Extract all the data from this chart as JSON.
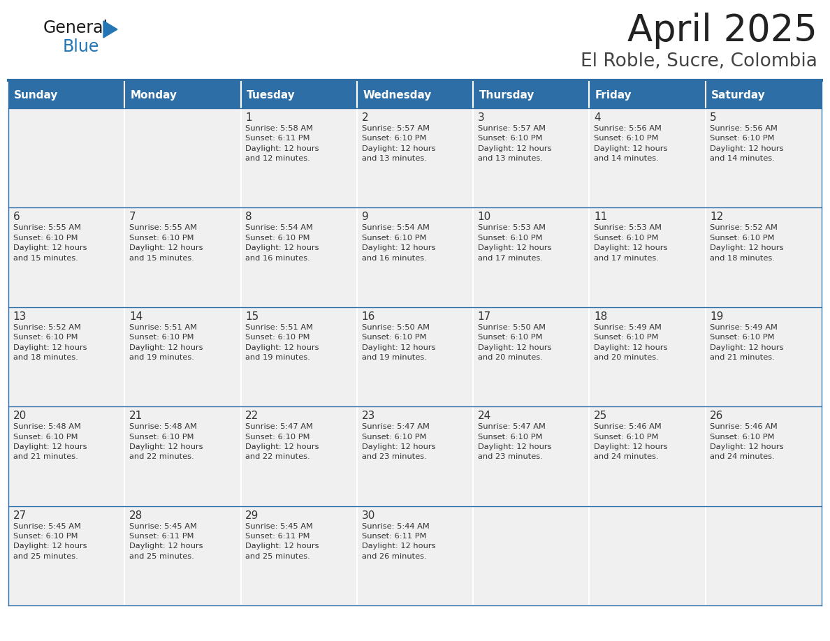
{
  "title": "April 2025",
  "subtitle": "El Roble, Sucre, Colombia",
  "header_bg": "#2E6EA6",
  "header_text_color": "#FFFFFF",
  "cell_bg": "#F0F0F0",
  "border_color": "#2E6EA6",
  "text_color": "#333333",
  "days_of_week": [
    "Sunday",
    "Monday",
    "Tuesday",
    "Wednesday",
    "Thursday",
    "Friday",
    "Saturday"
  ],
  "logo_color1": "#1a1a1a",
  "logo_color2": "#2375B3",
  "calendar": [
    [
      {
        "day": "",
        "info": ""
      },
      {
        "day": "",
        "info": ""
      },
      {
        "day": "1",
        "info": "Sunrise: 5:58 AM\nSunset: 6:11 PM\nDaylight: 12 hours\nand 12 minutes."
      },
      {
        "day": "2",
        "info": "Sunrise: 5:57 AM\nSunset: 6:10 PM\nDaylight: 12 hours\nand 13 minutes."
      },
      {
        "day": "3",
        "info": "Sunrise: 5:57 AM\nSunset: 6:10 PM\nDaylight: 12 hours\nand 13 minutes."
      },
      {
        "day": "4",
        "info": "Sunrise: 5:56 AM\nSunset: 6:10 PM\nDaylight: 12 hours\nand 14 minutes."
      },
      {
        "day": "5",
        "info": "Sunrise: 5:56 AM\nSunset: 6:10 PM\nDaylight: 12 hours\nand 14 minutes."
      }
    ],
    [
      {
        "day": "6",
        "info": "Sunrise: 5:55 AM\nSunset: 6:10 PM\nDaylight: 12 hours\nand 15 minutes."
      },
      {
        "day": "7",
        "info": "Sunrise: 5:55 AM\nSunset: 6:10 PM\nDaylight: 12 hours\nand 15 minutes."
      },
      {
        "day": "8",
        "info": "Sunrise: 5:54 AM\nSunset: 6:10 PM\nDaylight: 12 hours\nand 16 minutes."
      },
      {
        "day": "9",
        "info": "Sunrise: 5:54 AM\nSunset: 6:10 PM\nDaylight: 12 hours\nand 16 minutes."
      },
      {
        "day": "10",
        "info": "Sunrise: 5:53 AM\nSunset: 6:10 PM\nDaylight: 12 hours\nand 17 minutes."
      },
      {
        "day": "11",
        "info": "Sunrise: 5:53 AM\nSunset: 6:10 PM\nDaylight: 12 hours\nand 17 minutes."
      },
      {
        "day": "12",
        "info": "Sunrise: 5:52 AM\nSunset: 6:10 PM\nDaylight: 12 hours\nand 18 minutes."
      }
    ],
    [
      {
        "day": "13",
        "info": "Sunrise: 5:52 AM\nSunset: 6:10 PM\nDaylight: 12 hours\nand 18 minutes."
      },
      {
        "day": "14",
        "info": "Sunrise: 5:51 AM\nSunset: 6:10 PM\nDaylight: 12 hours\nand 19 minutes."
      },
      {
        "day": "15",
        "info": "Sunrise: 5:51 AM\nSunset: 6:10 PM\nDaylight: 12 hours\nand 19 minutes."
      },
      {
        "day": "16",
        "info": "Sunrise: 5:50 AM\nSunset: 6:10 PM\nDaylight: 12 hours\nand 19 minutes."
      },
      {
        "day": "17",
        "info": "Sunrise: 5:50 AM\nSunset: 6:10 PM\nDaylight: 12 hours\nand 20 minutes."
      },
      {
        "day": "18",
        "info": "Sunrise: 5:49 AM\nSunset: 6:10 PM\nDaylight: 12 hours\nand 20 minutes."
      },
      {
        "day": "19",
        "info": "Sunrise: 5:49 AM\nSunset: 6:10 PM\nDaylight: 12 hours\nand 21 minutes."
      }
    ],
    [
      {
        "day": "20",
        "info": "Sunrise: 5:48 AM\nSunset: 6:10 PM\nDaylight: 12 hours\nand 21 minutes."
      },
      {
        "day": "21",
        "info": "Sunrise: 5:48 AM\nSunset: 6:10 PM\nDaylight: 12 hours\nand 22 minutes."
      },
      {
        "day": "22",
        "info": "Sunrise: 5:47 AM\nSunset: 6:10 PM\nDaylight: 12 hours\nand 22 minutes."
      },
      {
        "day": "23",
        "info": "Sunrise: 5:47 AM\nSunset: 6:10 PM\nDaylight: 12 hours\nand 23 minutes."
      },
      {
        "day": "24",
        "info": "Sunrise: 5:47 AM\nSunset: 6:10 PM\nDaylight: 12 hours\nand 23 minutes."
      },
      {
        "day": "25",
        "info": "Sunrise: 5:46 AM\nSunset: 6:10 PM\nDaylight: 12 hours\nand 24 minutes."
      },
      {
        "day": "26",
        "info": "Sunrise: 5:46 AM\nSunset: 6:10 PM\nDaylight: 12 hours\nand 24 minutes."
      }
    ],
    [
      {
        "day": "27",
        "info": "Sunrise: 5:45 AM\nSunset: 6:10 PM\nDaylight: 12 hours\nand 25 minutes."
      },
      {
        "day": "28",
        "info": "Sunrise: 5:45 AM\nSunset: 6:11 PM\nDaylight: 12 hours\nand 25 minutes."
      },
      {
        "day": "29",
        "info": "Sunrise: 5:45 AM\nSunset: 6:11 PM\nDaylight: 12 hours\nand 25 minutes."
      },
      {
        "day": "30",
        "info": "Sunrise: 5:44 AM\nSunset: 6:11 PM\nDaylight: 12 hours\nand 26 minutes."
      },
      {
        "day": "",
        "info": ""
      },
      {
        "day": "",
        "info": ""
      },
      {
        "day": "",
        "info": ""
      }
    ]
  ]
}
